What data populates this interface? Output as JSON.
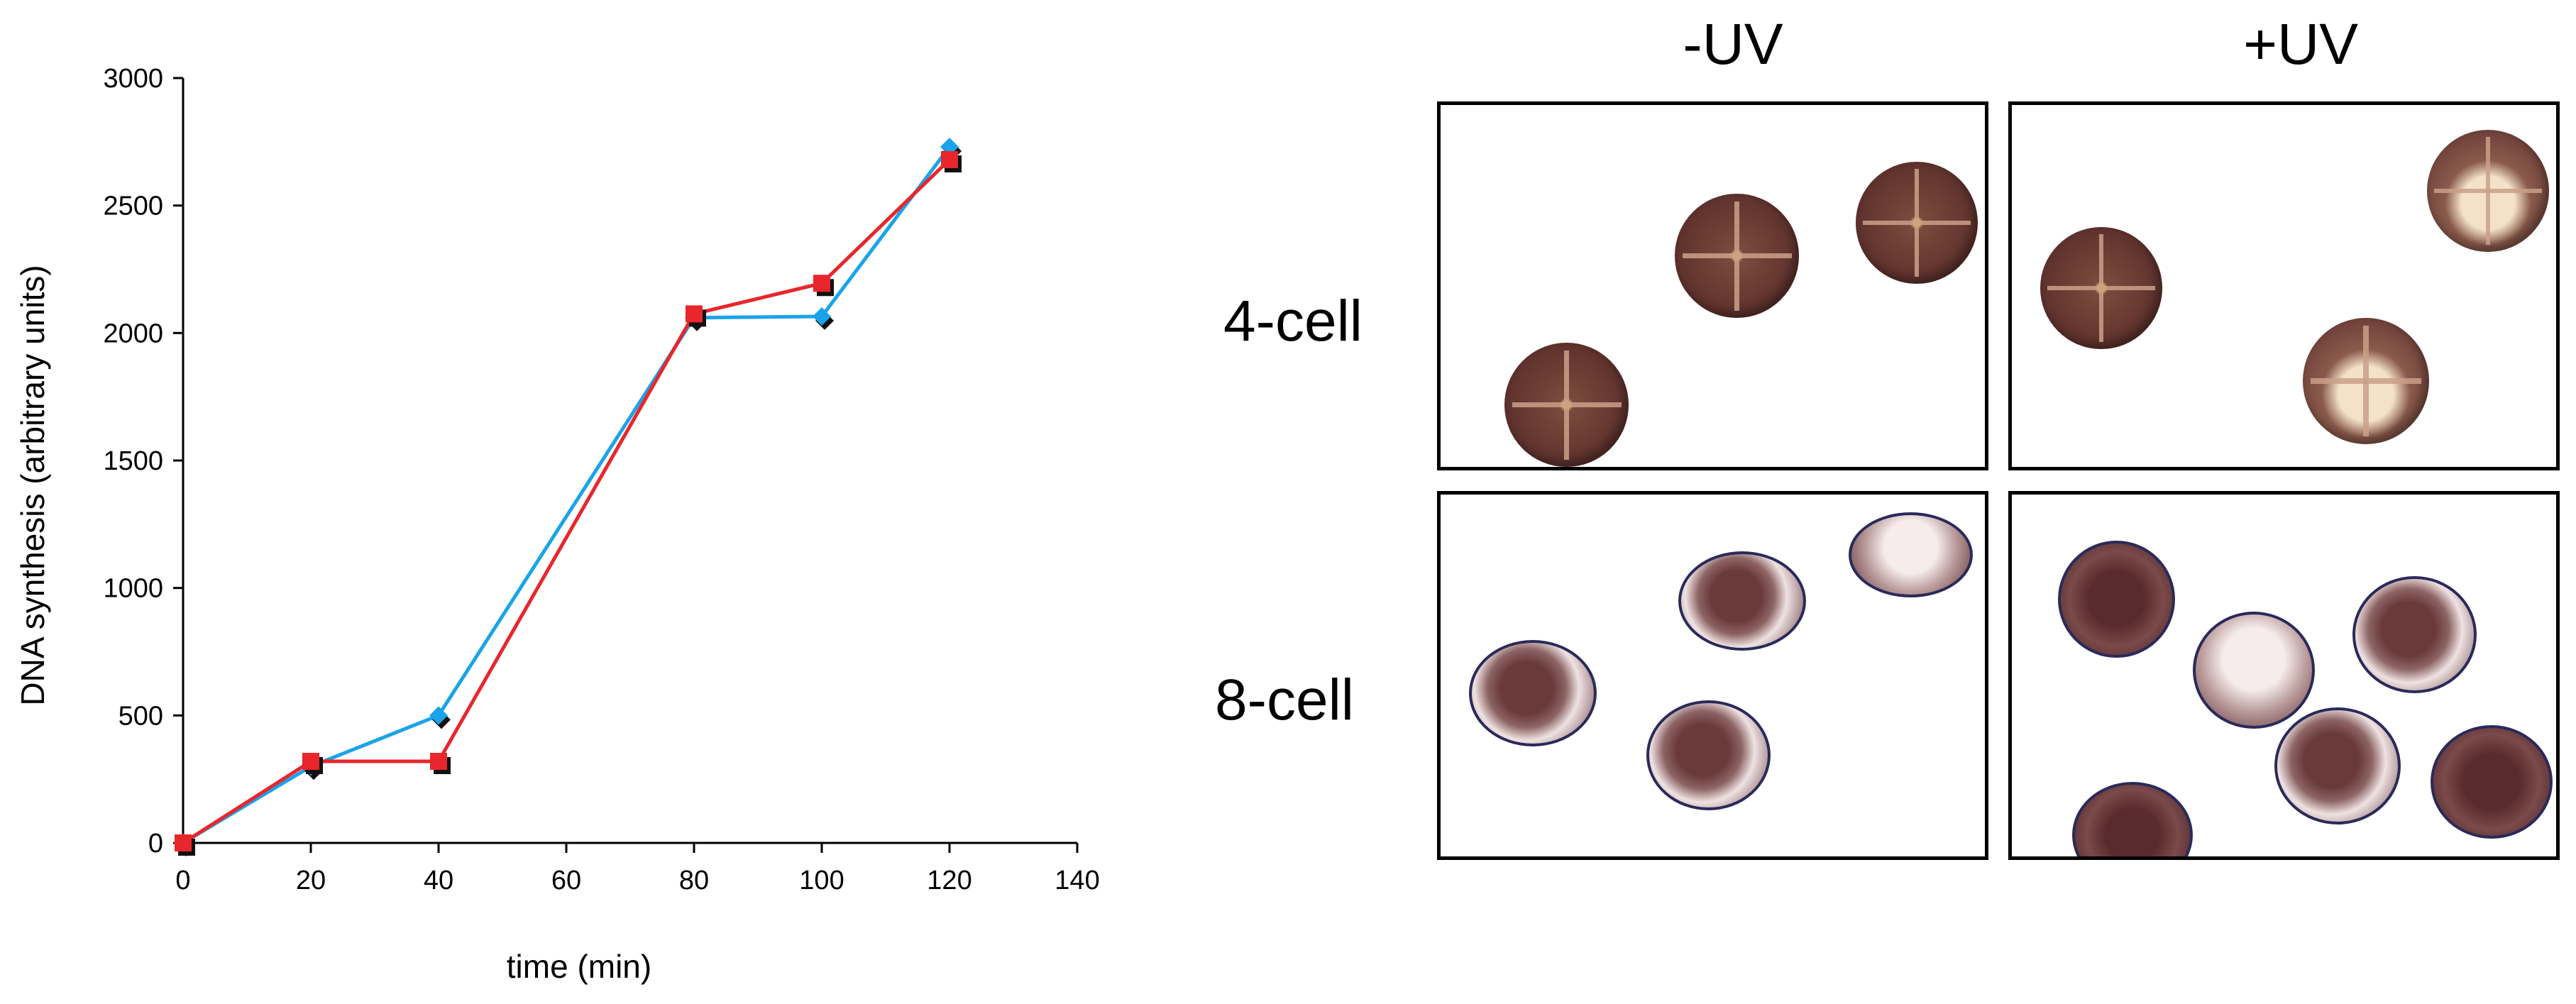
{
  "chart_data": {
    "type": "line",
    "title": "",
    "xlabel": "time (min)",
    "ylabel": "DNA synthesis (arbitrary units)",
    "xlim": [
      0,
      140
    ],
    "ylim": [
      0,
      3000
    ],
    "xticks": [
      0,
      20,
      40,
      60,
      80,
      100,
      120,
      140
    ],
    "yticks": [
      0,
      500,
      1000,
      1500,
      2000,
      2500,
      3000
    ],
    "grid": false,
    "x": [
      0,
      20,
      40,
      80,
      100,
      120
    ],
    "series": [
      {
        "name": "blue series",
        "color": "#1aa3e8",
        "marker": "diamond",
        "values": [
          0,
          300,
          500,
          2060,
          2065,
          2730
        ]
      },
      {
        "name": "red series",
        "color": "#e8262b",
        "marker": "square",
        "values": [
          0,
          320,
          320,
          2075,
          2195,
          2680
        ]
      }
    ]
  },
  "panels": {
    "columns": [
      "-UV",
      "+UV"
    ],
    "rows": [
      "4-cell",
      "8-cell"
    ]
  }
}
